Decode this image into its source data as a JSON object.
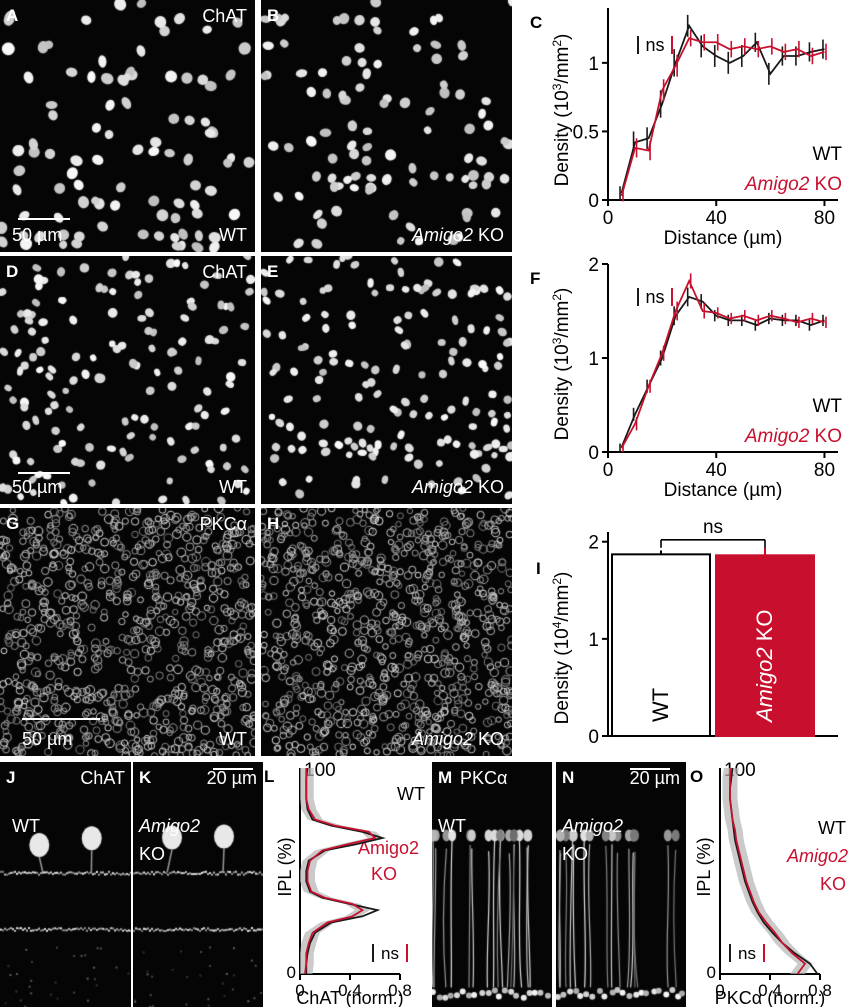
{
  "panels": {
    "A": {
      "letter": "A",
      "stain": "ChAT",
      "genotype": "WT",
      "scale": "50 µm"
    },
    "B": {
      "letter": "B",
      "genotype_italic": "Amigo2",
      "genotype_rest": " KO"
    },
    "D": {
      "letter": "D",
      "stain": "ChAT",
      "genotype": "WT",
      "scale": "50 µm"
    },
    "E": {
      "letter": "E",
      "genotype_italic": "Amigo2",
      "genotype_rest": " KO"
    },
    "G": {
      "letter": "G",
      "stain": "PKCα",
      "genotype": "WT",
      "scale": "50 µm"
    },
    "H": {
      "letter": "H",
      "genotype_italic": "Amigo2",
      "genotype_rest": " KO"
    },
    "J": {
      "letter": "J",
      "stain": "ChAT",
      "genotype": "WT"
    },
    "K": {
      "letter": "K",
      "scale": "20 µm",
      "genotype_italic": "Amigo2",
      "genotype_rest": "KO"
    },
    "M": {
      "letter": "M",
      "stain": "PKCα",
      "genotype": "WT"
    },
    "N": {
      "letter": "N",
      "scale": "20 µm",
      "genotype_italic": "Amigo2",
      "genotype_rest": "KO"
    }
  },
  "colors": {
    "wt": "#1a1a1a",
    "ko": "#c8102e",
    "band": "#b3b3b3"
  },
  "chart_data": [
    {
      "id": "C",
      "letter": "C",
      "type": "line",
      "xlabel": "Distance (µm)",
      "ylabel_main": "Density (10",
      "ylabel_sup1": "3",
      "ylabel_mid": "/mm",
      "ylabel_sup2": "2",
      "ylabel_end": ")",
      "xlim": [
        0,
        85
      ],
      "ylim": [
        0,
        1.4
      ],
      "xticks": [
        0,
        40,
        80
      ],
      "yticks": [
        0,
        0.5,
        1
      ],
      "annotation": "ns",
      "legend": {
        "wt": "WT",
        "ko_italic": "Amigo2",
        "ko_rest": " KO"
      },
      "x": [
        5,
        10,
        15,
        20,
        25,
        30,
        35,
        40,
        45,
        50,
        55,
        60,
        65,
        70,
        75,
        80
      ],
      "series": [
        {
          "key": "wt",
          "values": [
            0.05,
            0.42,
            0.45,
            0.7,
            1.0,
            1.27,
            1.12,
            1.05,
            1.0,
            1.05,
            1.15,
            0.92,
            1.05,
            1.05,
            1.08,
            1.1
          ],
          "err": [
            0.05,
            0.08,
            0.08,
            0.1,
            0.1,
            0.08,
            0.08,
            0.08,
            0.08,
            0.08,
            0.07,
            0.08,
            0.07,
            0.07,
            0.07,
            0.07
          ]
        },
        {
          "key": "ko",
          "values": [
            0.03,
            0.38,
            0.36,
            0.8,
            0.98,
            1.18,
            1.15,
            1.15,
            1.1,
            1.12,
            1.1,
            1.12,
            1.08,
            1.1,
            1.05,
            1.08
          ],
          "err": [
            0.04,
            0.07,
            0.07,
            0.08,
            0.08,
            0.06,
            0.06,
            0.06,
            0.06,
            0.06,
            0.06,
            0.06,
            0.06,
            0.06,
            0.06,
            0.06
          ]
        }
      ]
    },
    {
      "id": "F",
      "letter": "F",
      "type": "line",
      "xlabel": "Distance (µm)",
      "ylabel_main": "Density (10",
      "ylabel_sup1": "3",
      "ylabel_mid": "/mm",
      "ylabel_sup2": "2",
      "ylabel_end": ")",
      "xlim": [
        0,
        85
      ],
      "ylim": [
        0,
        2.0
      ],
      "xticks": [
        0,
        40,
        80
      ],
      "yticks": [
        0,
        1,
        2
      ],
      "annotation": "ns",
      "legend": {
        "wt": "WT",
        "ko_italic": "Amigo2",
        "ko_rest": " KO"
      },
      "x": [
        5,
        10,
        15,
        20,
        25,
        30,
        35,
        40,
        45,
        50,
        55,
        60,
        65,
        70,
        75,
        80
      ],
      "series": [
        {
          "key": "wt",
          "values": [
            0.05,
            0.4,
            0.7,
            1.0,
            1.45,
            1.65,
            1.6,
            1.45,
            1.4,
            1.4,
            1.35,
            1.42,
            1.4,
            1.4,
            1.35,
            1.4
          ],
          "err": [
            0.04,
            0.07,
            0.07,
            0.08,
            0.1,
            0.1,
            0.08,
            0.06,
            0.06,
            0.06,
            0.06,
            0.06,
            0.06,
            0.06,
            0.06,
            0.06
          ]
        },
        {
          "key": "ko",
          "values": [
            0.04,
            0.3,
            0.7,
            1.05,
            1.5,
            1.82,
            1.5,
            1.48,
            1.42,
            1.45,
            1.4,
            1.45,
            1.42,
            1.38,
            1.42,
            1.38
          ],
          "err": [
            0.04,
            0.07,
            0.07,
            0.08,
            0.1,
            0.08,
            0.08,
            0.06,
            0.06,
            0.06,
            0.06,
            0.06,
            0.06,
            0.06,
            0.06,
            0.06
          ]
        }
      ]
    },
    {
      "id": "I",
      "letter": "I",
      "type": "bar",
      "ylabel_main": "Density (10",
      "ylabel_sup1": "4",
      "ylabel_mid": "/mm",
      "ylabel_sup2": "2",
      "ylabel_end": ")",
      "ylim": [
        0,
        2.1
      ],
      "yticks": [
        0,
        1,
        2
      ],
      "categories": [
        {
          "key": "wt",
          "label_rest": "WT"
        },
        {
          "key": "ko",
          "label_italic": "Amigo2",
          "label_rest": " KO"
        }
      ],
      "values": [
        1.87,
        1.86
      ],
      "err": [
        0.04,
        0.08
      ],
      "annotation": "ns"
    },
    {
      "id": "L",
      "letter": "L",
      "type": "line",
      "xlabel": "ChAT (norm.)",
      "ylabel": "IPL (%)",
      "xlim": [
        0,
        0.8
      ],
      "ylim": [
        0,
        100
      ],
      "xticks": [
        0,
        0.4,
        0.8
      ],
      "ytick_labels": [
        "0",
        "100"
      ],
      "annotation": "ns",
      "legend": {
        "wt": "WT",
        "ko_line1": "Amigo2",
        "ko_line2": "KO"
      },
      "y": [
        0,
        5,
        10,
        15,
        20,
        25,
        28,
        31,
        34,
        37,
        40,
        45,
        50,
        55,
        60,
        63,
        66,
        69,
        72,
        75,
        80,
        85,
        90,
        95,
        100
      ],
      "series": [
        {
          "key": "wt",
          "values": [
            0.05,
            0.05,
            0.06,
            0.08,
            0.12,
            0.25,
            0.5,
            0.62,
            0.4,
            0.18,
            0.08,
            0.05,
            0.05,
            0.07,
            0.2,
            0.45,
            0.66,
            0.5,
            0.25,
            0.1,
            0.06,
            0.05,
            0.05,
            0.05,
            0.06
          ]
        },
        {
          "key": "ko",
          "values": [
            0.04,
            0.05,
            0.05,
            0.07,
            0.1,
            0.22,
            0.42,
            0.5,
            0.42,
            0.2,
            0.09,
            0.06,
            0.06,
            0.08,
            0.18,
            0.38,
            0.6,
            0.55,
            0.28,
            0.12,
            0.07,
            0.05,
            0.05,
            0.05,
            0.05
          ]
        }
      ]
    },
    {
      "id": "O",
      "letter": "O",
      "type": "line",
      "xlabel": "PKCα (norm.)",
      "ylabel": "IPL (%)",
      "xlim": [
        0,
        0.8
      ],
      "ylim": [
        0,
        100
      ],
      "xticks": [
        0,
        0.4,
        0.8
      ],
      "ytick_labels": [
        "0",
        "100"
      ],
      "annotation": "ns",
      "legend": {
        "wt": "WT",
        "ko_line1": "Amigo2",
        "ko_line2": "KO"
      },
      "y": [
        0,
        5,
        10,
        15,
        20,
        25,
        30,
        35,
        40,
        45,
        50,
        55,
        60,
        65,
        70,
        75,
        80,
        85,
        90,
        95,
        100
      ],
      "series": [
        {
          "key": "wt",
          "values": [
            0.78,
            0.72,
            0.6,
            0.5,
            0.42,
            0.35,
            0.3,
            0.26,
            0.23,
            0.2,
            0.18,
            0.16,
            0.14,
            0.12,
            0.11,
            0.1,
            0.09,
            0.08,
            0.08,
            0.09,
            0.1
          ]
        },
        {
          "key": "ko",
          "values": [
            0.62,
            0.68,
            0.58,
            0.5,
            0.44,
            0.37,
            0.31,
            0.27,
            0.24,
            0.21,
            0.19,
            0.17,
            0.15,
            0.13,
            0.12,
            0.1,
            0.09,
            0.08,
            0.08,
            0.08,
            0.09
          ]
        }
      ]
    }
  ]
}
